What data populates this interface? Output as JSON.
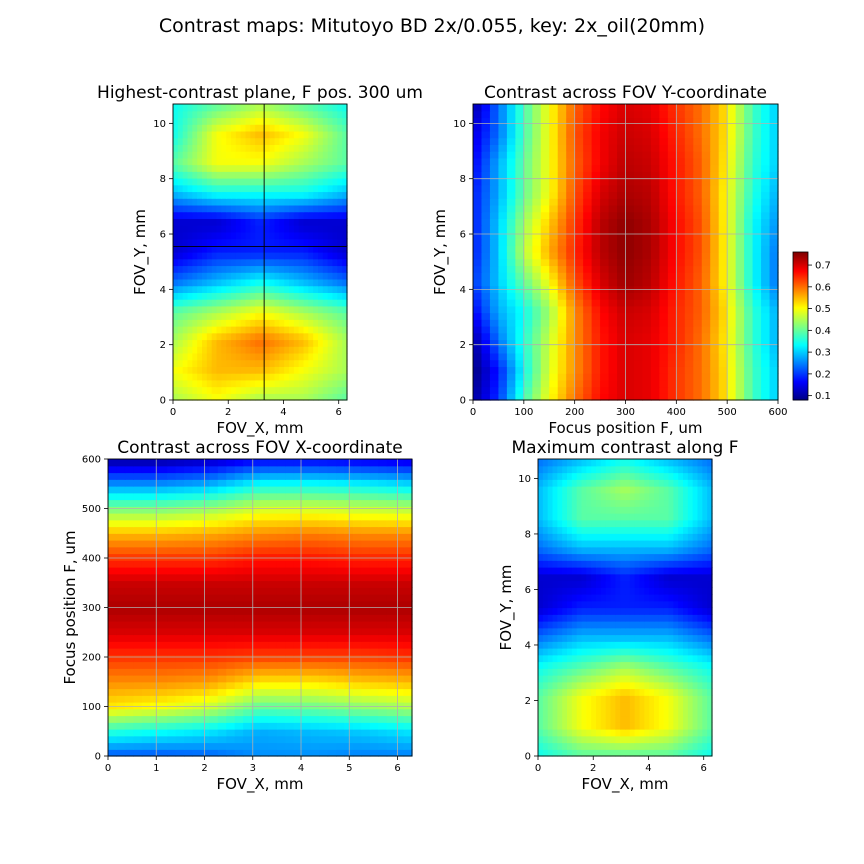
{
  "figure": {
    "suptitle": "Contrast maps: Mitutoyo BD 2x/0.055, key: 2x_oil(20mm)"
  },
  "chart_data": [
    {
      "type": "heatmap",
      "title": "Highest-contrast plane, F pos. 300 um",
      "xlabel": "FOV_X, mm",
      "ylabel": "FOV_Y, mm",
      "xlim": [
        0,
        6.3
      ],
      "ylim": [
        0,
        10.7
      ],
      "xticks": [
        0,
        2,
        4,
        6
      ],
      "yticks": [
        0,
        2,
        4,
        6,
        8,
        10
      ],
      "grid": false,
      "crosshair": {
        "x": 3.3,
        "y": 5.55
      },
      "colormap": "jet",
      "values_range": [
        0.63,
        0.76
      ],
      "x_samples": [
        0,
        1.575,
        3.15,
        4.725,
        6.3
      ],
      "y_samples": [
        0,
        1.07,
        2.14,
        3.21,
        4.28,
        5.35,
        6.42,
        7.49,
        8.56,
        9.63,
        10.7
      ],
      "values": [
        [
          0.7,
          0.71,
          0.7,
          0.7,
          0.69
        ],
        [
          0.71,
          0.72,
          0.72,
          0.71,
          0.7
        ],
        [
          0.7,
          0.72,
          0.73,
          0.72,
          0.7
        ],
        [
          0.69,
          0.7,
          0.71,
          0.7,
          0.69
        ],
        [
          0.66,
          0.67,
          0.68,
          0.67,
          0.66
        ],
        [
          0.64,
          0.65,
          0.65,
          0.65,
          0.64
        ],
        [
          0.64,
          0.64,
          0.65,
          0.64,
          0.64
        ],
        [
          0.67,
          0.68,
          0.68,
          0.68,
          0.67
        ],
        [
          0.69,
          0.71,
          0.71,
          0.7,
          0.69
        ],
        [
          0.68,
          0.71,
          0.72,
          0.71,
          0.69
        ],
        [
          0.68,
          0.69,
          0.7,
          0.69,
          0.68
        ]
      ]
    },
    {
      "type": "heatmap",
      "title": "Contrast across FOV Y-coordinate",
      "xlabel": "Focus position F, um",
      "ylabel": "FOV_Y, mm",
      "xlim": [
        0,
        600
      ],
      "ylim": [
        0,
        10.7
      ],
      "xticks": [
        0,
        100,
        200,
        300,
        400,
        500,
        600
      ],
      "yticks": [
        0,
        2,
        4,
        6,
        8,
        10
      ],
      "grid": true,
      "colormap": "jet",
      "values_range": [
        0.08,
        0.76
      ],
      "x_samples": [
        0,
        50,
        100,
        150,
        200,
        250,
        300,
        350,
        400,
        450,
        500,
        550,
        600
      ],
      "y_samples": [
        0,
        1.07,
        2.14,
        3.21,
        4.28,
        5.35,
        6.42,
        7.49,
        8.56,
        9.63,
        10.7
      ],
      "values": [
        [
          0.1,
          0.2,
          0.38,
          0.5,
          0.6,
          0.67,
          0.7,
          0.69,
          0.64,
          0.6,
          0.52,
          0.38,
          0.3
        ],
        [
          0.08,
          0.18,
          0.34,
          0.48,
          0.58,
          0.66,
          0.7,
          0.69,
          0.64,
          0.6,
          0.52,
          0.38,
          0.3
        ],
        [
          0.1,
          0.24,
          0.36,
          0.47,
          0.58,
          0.66,
          0.7,
          0.69,
          0.65,
          0.6,
          0.51,
          0.37,
          0.28
        ],
        [
          0.16,
          0.28,
          0.34,
          0.44,
          0.58,
          0.67,
          0.71,
          0.7,
          0.65,
          0.61,
          0.52,
          0.37,
          0.28
        ],
        [
          0.2,
          0.3,
          0.4,
          0.5,
          0.62,
          0.7,
          0.74,
          0.72,
          0.66,
          0.61,
          0.5,
          0.34,
          0.24
        ],
        [
          0.18,
          0.3,
          0.46,
          0.56,
          0.65,
          0.72,
          0.75,
          0.73,
          0.67,
          0.62,
          0.5,
          0.34,
          0.24
        ],
        [
          0.18,
          0.3,
          0.44,
          0.54,
          0.64,
          0.72,
          0.75,
          0.73,
          0.67,
          0.62,
          0.5,
          0.34,
          0.26
        ],
        [
          0.18,
          0.28,
          0.4,
          0.5,
          0.62,
          0.7,
          0.73,
          0.72,
          0.66,
          0.61,
          0.5,
          0.36,
          0.28
        ],
        [
          0.16,
          0.28,
          0.4,
          0.5,
          0.61,
          0.68,
          0.72,
          0.71,
          0.66,
          0.61,
          0.51,
          0.37,
          0.3
        ],
        [
          0.14,
          0.24,
          0.38,
          0.5,
          0.62,
          0.68,
          0.71,
          0.7,
          0.65,
          0.6,
          0.52,
          0.38,
          0.3
        ],
        [
          0.1,
          0.24,
          0.38,
          0.5,
          0.61,
          0.67,
          0.7,
          0.69,
          0.64,
          0.6,
          0.52,
          0.38,
          0.3
        ]
      ]
    },
    {
      "type": "heatmap",
      "title": "Contrast across FOV X-coordinate",
      "xlabel": "FOV_X, mm",
      "ylabel": "Focus position F, um",
      "xlim": [
        0,
        6.3
      ],
      "ylim": [
        0,
        600
      ],
      "xticks": [
        0,
        1,
        2,
        3,
        4,
        5,
        6
      ],
      "yticks": [
        0,
        100,
        200,
        300,
        400,
        500,
        600
      ],
      "grid": true,
      "colormap": "jet",
      "values_range": [
        0.08,
        0.76
      ],
      "x_samples": [
        0,
        1.05,
        2.1,
        3.15,
        4.2,
        5.25,
        6.3
      ],
      "y_samples": [
        0,
        50,
        100,
        150,
        200,
        250,
        300,
        350,
        400,
        450,
        500,
        550,
        600
      ],
      "values": [
        [
          0.22,
          0.22,
          0.23,
          0.26,
          0.26,
          0.25,
          0.25
        ],
        [
          0.36,
          0.34,
          0.32,
          0.28,
          0.29,
          0.3,
          0.32
        ],
        [
          0.52,
          0.5,
          0.47,
          0.4,
          0.41,
          0.43,
          0.45
        ],
        [
          0.58,
          0.58,
          0.57,
          0.52,
          0.52,
          0.54,
          0.55
        ],
        [
          0.64,
          0.64,
          0.64,
          0.63,
          0.63,
          0.63,
          0.64
        ],
        [
          0.7,
          0.7,
          0.7,
          0.7,
          0.7,
          0.7,
          0.7
        ],
        [
          0.73,
          0.73,
          0.73,
          0.73,
          0.73,
          0.73,
          0.73
        ],
        [
          0.71,
          0.71,
          0.71,
          0.71,
          0.71,
          0.71,
          0.71
        ],
        [
          0.64,
          0.64,
          0.64,
          0.66,
          0.66,
          0.65,
          0.65
        ],
        [
          0.55,
          0.55,
          0.56,
          0.58,
          0.59,
          0.58,
          0.58
        ],
        [
          0.42,
          0.42,
          0.44,
          0.48,
          0.48,
          0.47,
          0.46
        ],
        [
          0.26,
          0.26,
          0.28,
          0.34,
          0.34,
          0.33,
          0.31
        ],
        [
          0.1,
          0.1,
          0.12,
          0.16,
          0.16,
          0.15,
          0.14
        ]
      ]
    },
    {
      "type": "heatmap",
      "title": "Maximum contrast along F",
      "xlabel": "FOV_X, mm",
      "ylabel": "FOV_Y, mm",
      "xlim": [
        0,
        6.3
      ],
      "ylim": [
        0,
        10.7
      ],
      "xticks": [
        0,
        2,
        4,
        6
      ],
      "yticks": [
        0,
        2,
        4,
        6,
        8,
        10
      ],
      "grid": false,
      "colormap": "jet",
      "values_range": [
        0.63,
        0.76
      ],
      "x_samples": [
        0,
        1.575,
        3.15,
        4.725,
        6.3
      ],
      "y_samples": [
        0,
        1.07,
        2.14,
        3.21,
        4.28,
        5.35,
        6.42,
        7.49,
        8.56,
        9.63,
        10.7
      ],
      "values": [
        [
          0.68,
          0.69,
          0.69,
          0.69,
          0.68
        ],
        [
          0.69,
          0.71,
          0.72,
          0.71,
          0.69
        ],
        [
          0.69,
          0.71,
          0.72,
          0.71,
          0.69
        ],
        [
          0.68,
          0.69,
          0.7,
          0.69,
          0.68
        ],
        [
          0.66,
          0.67,
          0.67,
          0.67,
          0.66
        ],
        [
          0.64,
          0.65,
          0.65,
          0.65,
          0.64
        ],
        [
          0.64,
          0.64,
          0.65,
          0.64,
          0.64
        ],
        [
          0.66,
          0.67,
          0.67,
          0.67,
          0.66
        ],
        [
          0.67,
          0.69,
          0.69,
          0.69,
          0.67
        ],
        [
          0.67,
          0.69,
          0.7,
          0.69,
          0.67
        ],
        [
          0.66,
          0.67,
          0.68,
          0.67,
          0.66
        ]
      ]
    }
  ],
  "colorbar": {
    "ticks": [
      0.1,
      0.2,
      0.3,
      0.4,
      0.5,
      0.6,
      0.7
    ],
    "range": [
      0.08,
      0.76
    ],
    "colormap": "jet"
  },
  "colors": {
    "grid": "#b0b0b0",
    "crosshair": "#000000",
    "axes": "#000000"
  }
}
